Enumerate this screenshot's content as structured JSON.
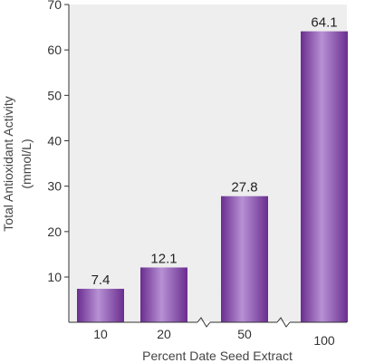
{
  "chart_data": {
    "type": "bar",
    "title": "",
    "xlabel": "Percent Date Seed Extract",
    "ylabel": "Total Antioxidant Activity",
    "ylabel_unit": "(mmol/L)",
    "categories": [
      "10",
      "20",
      "50",
      "100"
    ],
    "values": [
      7.4,
      12.1,
      27.8,
      64.1
    ],
    "value_labels": [
      "7.4",
      "12.1",
      "27.8",
      "64.1"
    ],
    "ylim": [
      0,
      70
    ],
    "yticks": [
      10,
      20,
      30,
      40,
      50,
      60,
      70
    ],
    "axis_breaks_after_categories": [
      "20",
      "50"
    ],
    "grid": false,
    "colors": {
      "bar_dark": "#6a2d8f",
      "bar_light": "#b791d4",
      "plot_background": "#eeeeee",
      "axis": "#333333"
    }
  }
}
